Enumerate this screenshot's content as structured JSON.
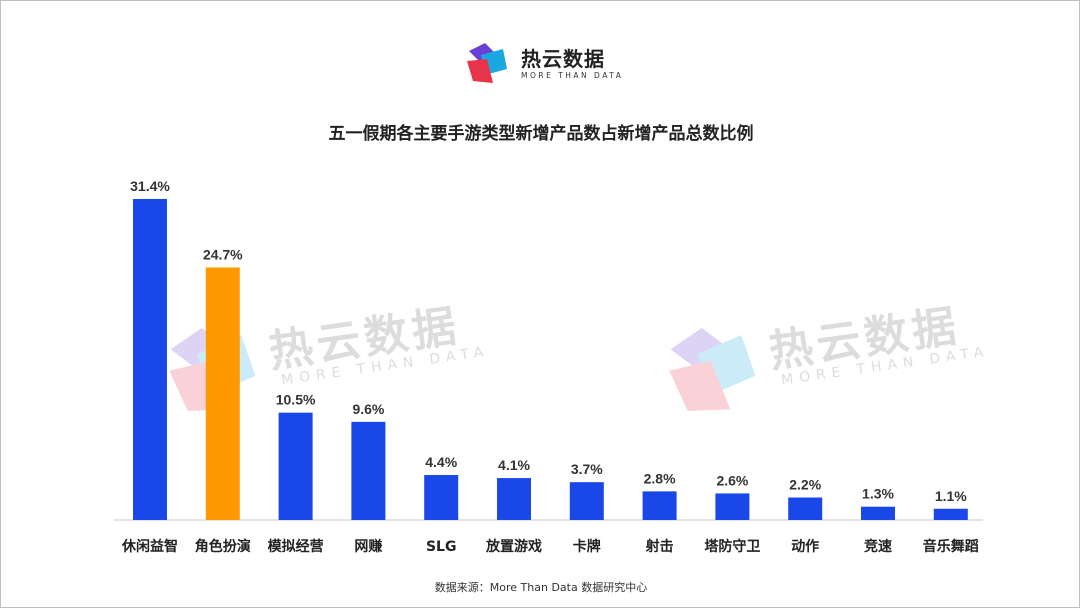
{
  "logo": {
    "name": "热云数据",
    "tagline": "MORE THAN DATA"
  },
  "watermark": {
    "name": "热云数据",
    "tagline": "MORE THAN DATA"
  },
  "source": "数据来源：More  Than  Data  数据研究中心",
  "colors": {
    "bar": "#1a47e8",
    "highlight": "#ff9900",
    "axis": "#c8c8c8"
  },
  "chart_data": {
    "type": "bar",
    "title": "五一假期各主要手游类型新增产品数占新增产品总数比例",
    "categories": [
      "休闲益智",
      "角色扮演",
      "模拟经营",
      "网赚",
      "SLG",
      "放置游戏",
      "卡牌",
      "射击",
      "塔防守卫",
      "动作",
      "竞速",
      "音乐舞蹈"
    ],
    "values": [
      31.4,
      24.7,
      10.5,
      9.6,
      4.4,
      4.1,
      3.7,
      2.8,
      2.6,
      2.2,
      1.3,
      1.1
    ],
    "value_labels": [
      "31.4%",
      "24.7%",
      "10.5%",
      "9.6%",
      "4.4%",
      "4.1%",
      "3.7%",
      "2.8%",
      "2.6%",
      "2.2%",
      "1.3%",
      "1.1%"
    ],
    "highlight_index": 1,
    "xlabel": "",
    "ylabel": "",
    "ylim": [
      0,
      31.4
    ],
    "grid": false,
    "legend": "none"
  }
}
